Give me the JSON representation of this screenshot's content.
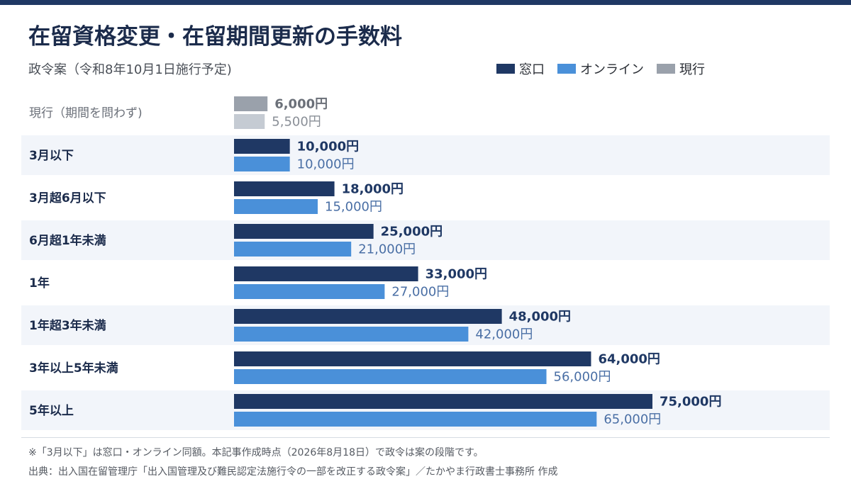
{
  "header": {
    "title": "在留資格変更・在留期間更新の手数料",
    "subtitle": "政令案（令和8年10月1日施行予定)"
  },
  "legend": [
    {
      "label": "窓口",
      "color": "#1f3864"
    },
    {
      "label": "オンライン",
      "color": "#4a90d9"
    },
    {
      "label": "現行",
      "color": "#9aa1ab"
    }
  ],
  "footer": {
    "note": "※「3月以下」は窓口・オンライン同額。本記事作成時点（2026年8月18日）で政令は案の段階です。",
    "source": "出典：出入国在留管理庁「出入国管理及び難民認定法施行令の一部を改正する政令案」／たかやま行政書士事務所 作成"
  },
  "chart_data": {
    "type": "bar",
    "orientation": "horizontal",
    "unit": "円",
    "categories": [
      "現行（期間を問わず)",
      "3月以下",
      "3月超6月以下",
      "6月超1年未満",
      "1年",
      "1年超3年未満",
      "3年以上5年未満",
      "5年以上"
    ],
    "series": [
      {
        "name": "窓口",
        "values": [
          6000,
          10000,
          18000,
          25000,
          33000,
          48000,
          64000,
          75000
        ],
        "labels": [
          "6,000円",
          "10,000円",
          "18,000円",
          "25,000円",
          "33,000円",
          "48,000円",
          "64,000円",
          "75,000円"
        ]
      },
      {
        "name": "オンライン",
        "values": [
          5500,
          10000,
          15000,
          21000,
          27000,
          42000,
          56000,
          65000
        ],
        "labels": [
          "5,500円",
          "10,000円",
          "15,000円",
          "21,000円",
          "27,000円",
          "42,000円",
          "56,000円",
          "65,000円"
        ]
      }
    ],
    "current_row_colors": {
      "window": "#9aa1ab",
      "online": "#c5cbd3"
    },
    "colors": {
      "window": "#1f3864",
      "online": "#4a90d9",
      "window_label": "#1f3864",
      "online_label": "#4a6fa5",
      "current_window_label": "#6b7079",
      "current_online_label": "#8a8f97"
    },
    "grid": false
  }
}
